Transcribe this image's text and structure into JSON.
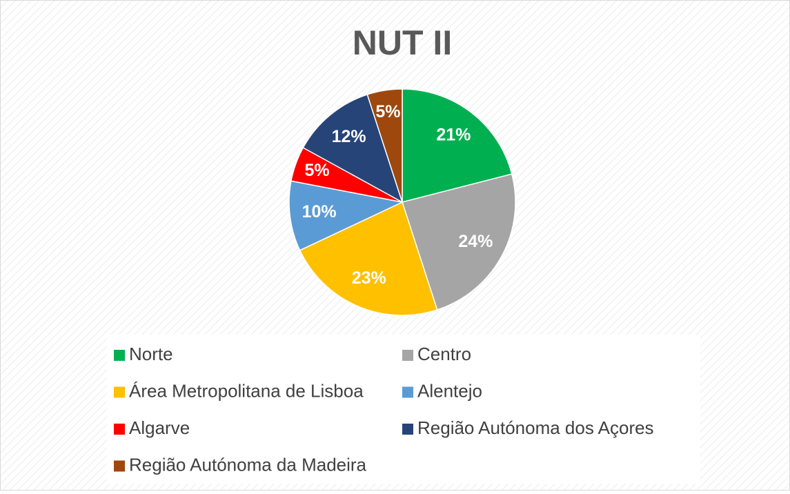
{
  "chart_data": {
    "type": "pie",
    "title": "NUT II",
    "categories": [
      "Norte",
      "Centro",
      "Área Metropolitana de Lisboa",
      "Alentejo",
      "Algarve",
      "Região Autónoma dos Açores",
      "Região Autónoma da Madeira"
    ],
    "values": [
      21,
      24,
      23,
      10,
      5,
      12,
      5
    ],
    "value_labels": [
      "21%",
      "24%",
      "23%",
      "10%",
      "5%",
      "12%",
      "5%"
    ],
    "colors": [
      "#00b050",
      "#a5a5a5",
      "#ffc000",
      "#5b9bd5",
      "#ff0000",
      "#264478",
      "#9e480e"
    ],
    "legend": "bottom"
  }
}
